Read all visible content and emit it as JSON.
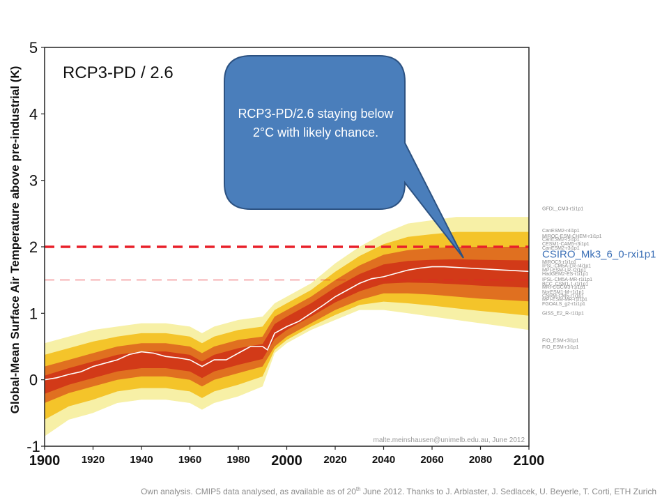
{
  "chart_data": {
    "type": "line",
    "title": "RCP3-PD / 2.6",
    "ylabel": "Global-Mean Surface Air Temperature above pre-industrial (K)",
    "xlabel": "",
    "xlim": [
      1900,
      2100
    ],
    "ylim": [
      -1,
      5
    ],
    "x_ticks": [
      1900,
      1920,
      1940,
      1960,
      1980,
      2000,
      2020,
      2040,
      2060,
      2080,
      2100
    ],
    "x_ticks_major": [
      1900,
      2000,
      2100
    ],
    "y_ticks": [
      -1,
      0,
      1,
      2,
      3,
      4,
      5
    ],
    "grid": false,
    "reference_lines": [
      {
        "value": 2.0,
        "color": "#e8202a",
        "style": "dashed-thick"
      },
      {
        "value": 1.5,
        "color": "#e8202a",
        "style": "dashed-thin"
      }
    ],
    "series": [
      {
        "name": "",
        "color": "#ffffff",
        "x": [
          1900,
          1905,
          1910,
          1915,
          1920,
          1925,
          1930,
          1935,
          1940,
          1945,
          1950,
          1955,
          1960,
          1965,
          1970,
          1975,
          1980,
          1985,
          1990,
          1992,
          1995,
          2000,
          2005,
          2010,
          2015,
          2020,
          2025,
          2030,
          2035,
          2040,
          2045,
          2050,
          2055,
          2060,
          2065,
          2070,
          2075,
          2080,
          2085,
          2090,
          2095,
          2100
        ],
        "y": [
          0.0,
          0.03,
          0.08,
          0.12,
          0.2,
          0.25,
          0.3,
          0.38,
          0.42,
          0.4,
          0.35,
          0.33,
          0.3,
          0.2,
          0.3,
          0.3,
          0.4,
          0.5,
          0.5,
          0.45,
          0.7,
          0.8,
          0.88,
          1.0,
          1.12,
          1.25,
          1.35,
          1.45,
          1.52,
          1.55,
          1.6,
          1.65,
          1.68,
          1.7,
          1.7,
          1.69,
          1.68,
          1.67,
          1.66,
          1.65,
          1.64,
          1.63
        ]
      }
    ],
    "envelope": {
      "x": [
        1900,
        1910,
        1920,
        1930,
        1940,
        1950,
        1960,
        1965,
        1970,
        1980,
        1990,
        1995,
        2000,
        2010,
        2020,
        2030,
        2040,
        2050,
        2060,
        2070,
        2080,
        2090,
        2100
      ],
      "outer_low": [
        -0.85,
        -0.6,
        -0.5,
        -0.35,
        -0.3,
        -0.3,
        -0.35,
        -0.45,
        -0.35,
        -0.25,
        -0.1,
        0.4,
        0.55,
        0.75,
        0.9,
        1.05,
        1.05,
        1.0,
        0.95,
        0.9,
        0.85,
        0.8,
        0.75
      ],
      "outer_high": [
        0.55,
        0.65,
        0.75,
        0.8,
        0.85,
        0.85,
        0.8,
        0.7,
        0.8,
        0.9,
        0.95,
        1.15,
        1.25,
        1.45,
        1.75,
        2.0,
        2.2,
        2.35,
        2.4,
        2.45,
        2.45,
        2.45,
        2.45
      ],
      "inner_low": [
        -0.35,
        -0.2,
        -0.1,
        0.0,
        0.05,
        0.05,
        0.0,
        -0.1,
        0.0,
        0.1,
        0.2,
        0.5,
        0.65,
        0.85,
        1.05,
        1.2,
        1.3,
        1.3,
        1.28,
        1.25,
        1.22,
        1.2,
        1.18
      ],
      "inner_high": [
        0.2,
        0.3,
        0.4,
        0.5,
        0.55,
        0.55,
        0.5,
        0.4,
        0.5,
        0.6,
        0.65,
        0.95,
        1.05,
        1.25,
        1.5,
        1.72,
        1.88,
        1.95,
        1.98,
        2.0,
        2.0,
        2.0,
        2.0
      ],
      "colors": [
        "#f7f0a6",
        "#f4c42a",
        "#e07020",
        "#d23a18"
      ]
    },
    "model_labels": [
      {
        "text": "GFDL_CM3-r1i1p1",
        "y": 2.58
      },
      {
        "text": "CanESM2-r4i1p1",
        "y": 2.25
      },
      {
        "text": "MIROC-ESM-CHEM-r1i1p1",
        "y": 2.17
      },
      {
        "text": "CanESM2-r5i1p1",
        "y": 2.12
      },
      {
        "text": "CESM1-CAM5-r3i1p1",
        "y": 2.05
      },
      {
        "text": "CanESM2-r3i1p1",
        "y": 1.99
      },
      {
        "text": "CSIRO_Mk3_6_0-rxi1p1",
        "y": 1.9,
        "highlight": true
      },
      {
        "text": "MIROC5-r1i1p1",
        "y": 1.78
      },
      {
        "text": "IPSL-CM5A-LR-r4i1p1",
        "y": 1.72
      },
      {
        "text": "MPI-ESM-LR-r2i1p1",
        "y": 1.66
      },
      {
        "text": "HadGEM2-ES-r1i1p1",
        "y": 1.6
      },
      {
        "text": "IPSL-CM5A-MR-r1i1p1",
        "y": 1.52
      },
      {
        "text": "BCC_CSM1-1-r1i1p1",
        "y": 1.45
      },
      {
        "text": "MRI-CGCM3-r1i1p1",
        "y": 1.4
      },
      {
        "text": "NorESM1-M-r1i1p1",
        "y": 1.33
      },
      {
        "text": "CNRM-CM5-r1i1p1",
        "y": 1.27
      },
      {
        "text": "MPI-ESM-MR-r1i1p1",
        "y": 1.22
      },
      {
        "text": "FGOALS_g2-r1i1p1",
        "y": 1.15
      },
      {
        "text": "GISS_E2_R-r1i1p1",
        "y": 1.01
      },
      {
        "text": "FIO_ESM-r3i1p1",
        "y": 0.6
      },
      {
        "text": "FIO_ESM-r1i1p1",
        "y": 0.5
      }
    ],
    "annotations": {
      "credit": "malte.meinshausen@unimelb.edu.au, June 2012"
    }
  },
  "callout": {
    "text": "RCP3-PD/2.6 staying below 2°C with likely chance.",
    "fill": "#4a7ebb",
    "stroke": "#2c5282"
  },
  "footer": {
    "before_sup": "Own analysis. CMIP5 data analysed, as available as of 20",
    "sup": "th",
    "after_sup": " June 2012. Thanks to J. Arblaster, J. Sedlacek, U. Beyerle, T. Corti, ETH Zurich"
  }
}
